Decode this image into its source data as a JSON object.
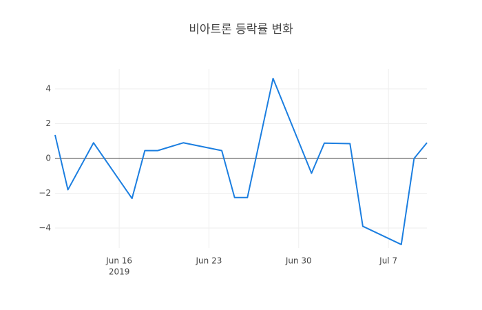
{
  "chart_data": {
    "type": "line",
    "title": "비아트론 등락률 변화",
    "x": [
      "2019-06-11",
      "2019-06-12",
      "2019-06-14",
      "2019-06-17",
      "2019-06-18",
      "2019-06-19",
      "2019-06-21",
      "2019-06-24",
      "2019-06-25",
      "2019-06-26",
      "2019-06-28",
      "2019-07-01",
      "2019-07-02",
      "2019-07-04",
      "2019-07-05",
      "2019-07-08",
      "2019-07-09",
      "2019-07-10"
    ],
    "series": [
      {
        "color": "#1b7ee0",
        "values": [
          1.35,
          -1.8,
          0.9,
          -2.3,
          0.45,
          0.45,
          0.9,
          0.45,
          -2.25,
          -2.25,
          4.6,
          -0.85,
          0.88,
          0.85,
          -3.9,
          -4.95,
          0,
          0.9
        ]
      }
    ],
    "xlim": [
      "2019-06-11",
      "2019-07-10"
    ],
    "xticks": [
      {
        "value": "2019-06-16",
        "label": "Jun 16",
        "sublabel": "2019"
      },
      {
        "value": "2019-06-23",
        "label": "Jun 23"
      },
      {
        "value": "2019-06-30",
        "label": "Jun 30"
      },
      {
        "value": "2019-07-07",
        "label": "Jul 7"
      }
    ],
    "ylim": [
      -5.15,
      5.15
    ],
    "yticks": [
      {
        "value": -4,
        "label": "−4"
      },
      {
        "value": -2,
        "label": "−2"
      },
      0,
      2,
      4
    ],
    "grid": true,
    "zeroline": true
  }
}
